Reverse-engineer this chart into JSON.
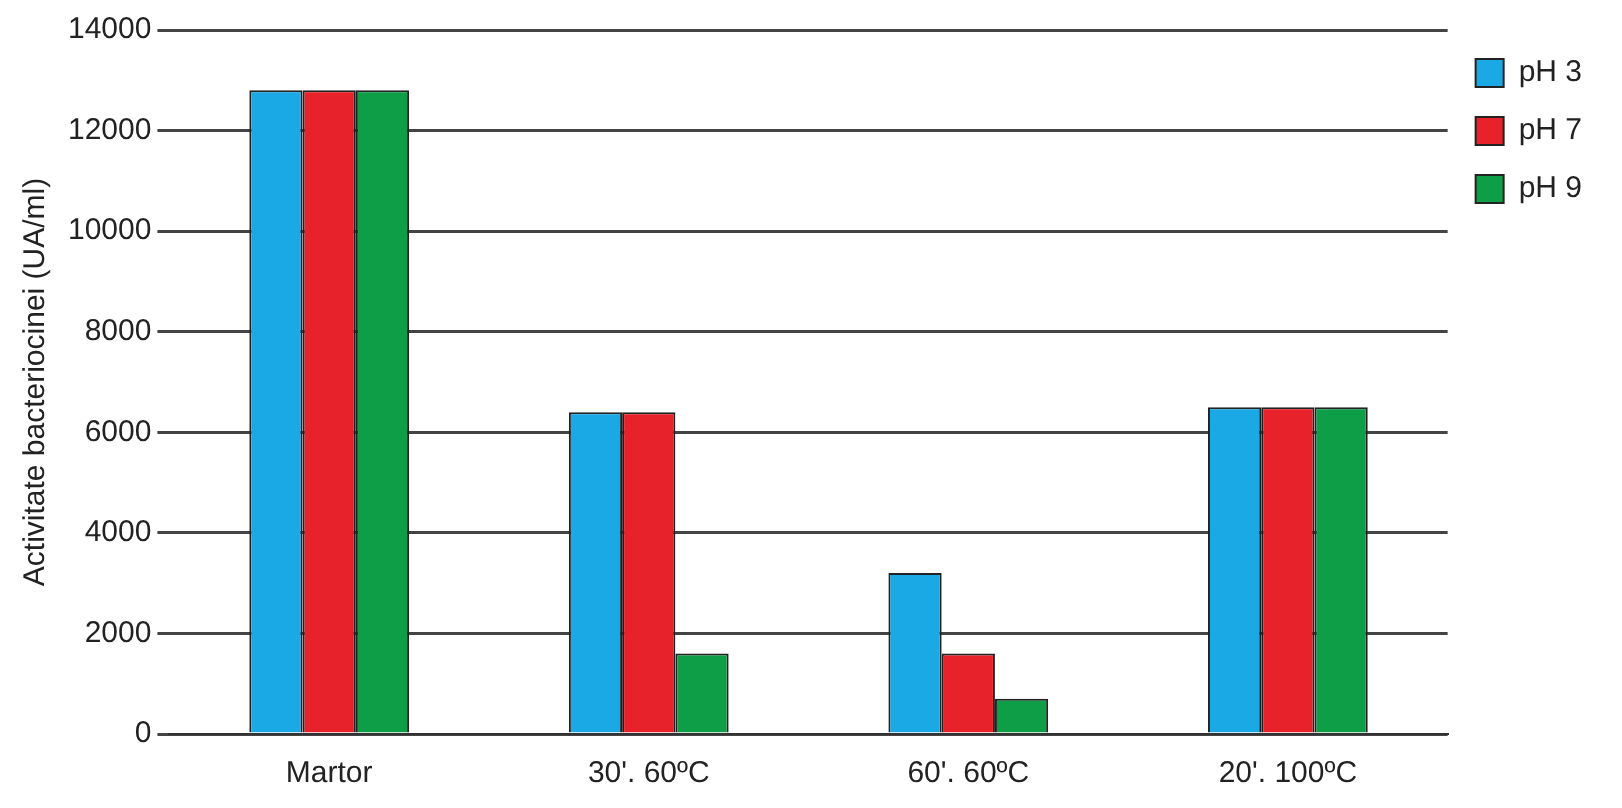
{
  "chart_data": {
    "type": "bar",
    "ylabel": "Activitate bacteriocinei (UA/ml)",
    "categories": [
      "Martor",
      "30'. 60ºC",
      "60'. 60ºC",
      "20'. 100ºC"
    ],
    "series": [
      {
        "name": "pH 3",
        "color": "#1ba9e6",
        "values": [
          12800,
          6400,
          3200,
          6500
        ]
      },
      {
        "name": "pH 7",
        "color": "#e8222a",
        "values": [
          12800,
          6400,
          1600,
          6500
        ]
      },
      {
        "name": "pH 9",
        "color": "#0e9e48",
        "values": [
          12800,
          1600,
          700,
          6500
        ]
      }
    ],
    "ylim": [
      0,
      14000
    ],
    "yticks": [
      0,
      2000,
      4000,
      6000,
      8000,
      10000,
      12000,
      14000
    ],
    "grid": "y",
    "legend": "top right"
  }
}
